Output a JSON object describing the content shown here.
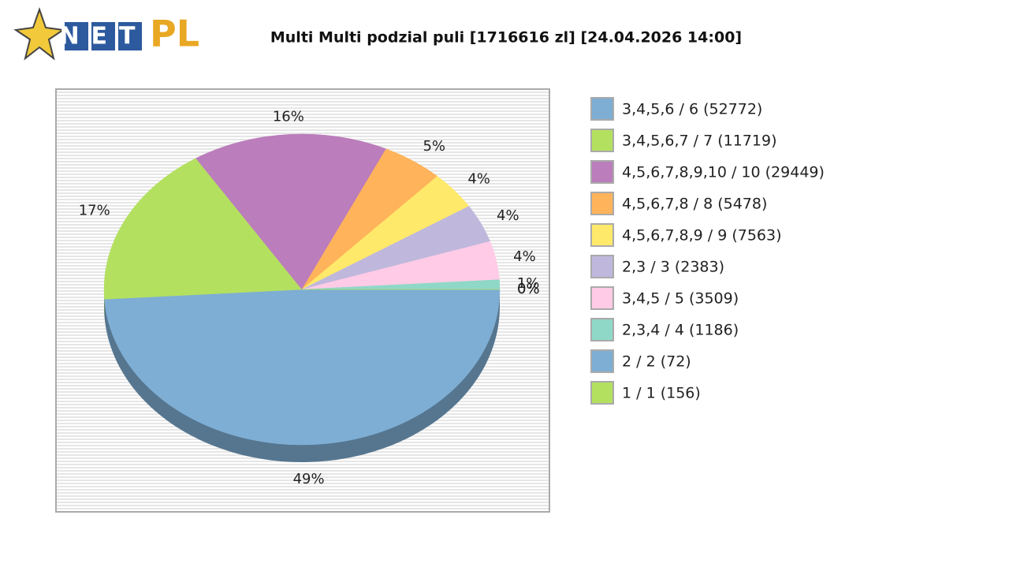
{
  "logo": {
    "net": "NET",
    "pl": "PL"
  },
  "chart_data": {
    "type": "pie",
    "title": "Multi Multi podzial puli [1716616 zl] [24.04.2026 14:00]",
    "categories": [
      "3,4,5,6 / 6 (52772)",
      "3,4,5,6,7 / 7 (11719)",
      "4,5,6,7,8,9,10 / 10 (29449)",
      "4,5,6,7,8 / 8 (5478)",
      "4,5,6,7,8,9 / 9 (7563)",
      "2,3 / 3 (2383)",
      "3,4,5 / 5 (3509)",
      "2,3,4 / 4 (1186)",
      "2 / 2 (72)",
      "1 / 1 (156)"
    ],
    "values": [
      49,
      17,
      16,
      5,
      4,
      4,
      4,
      1,
      0,
      0
    ],
    "value_labels": [
      "49%",
      "17%",
      "16%",
      "5%",
      "4%",
      "4%",
      "4%",
      "1%",
      "0%",
      "0%"
    ],
    "colors": [
      "#7eaed4",
      "#b4e060",
      "#bb7dbb",
      "#ffb35a",
      "#ffe96a",
      "#bfb8dc",
      "#ffcbe6",
      "#8fd8c8",
      "#7eaed4",
      "#b4e060"
    ],
    "legend": "right"
  }
}
